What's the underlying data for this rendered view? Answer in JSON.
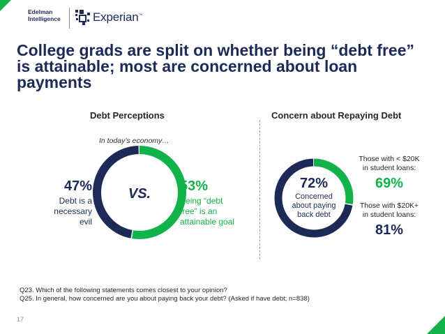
{
  "header": {
    "edelman_logo": [
      "Edelman",
      "Intelligence"
    ],
    "experian_logo": "Experian",
    "trademark": "™"
  },
  "title": "College grads are split on whether being “debt free” is attainable; most are concerned about loan payments",
  "left_panel": {
    "heading": "Debt Perceptions",
    "subheading": "In today’s economy…",
    "center_label": "VS.",
    "left_value": "47%",
    "left_desc": [
      "Debt is a",
      "necessary evil"
    ],
    "right_value": "53%",
    "right_desc": [
      "Being “debt",
      "free” is an",
      "attainable goal"
    ]
  },
  "right_panel": {
    "heading": "Concern about Repaying Debt",
    "center_value": "72%",
    "center_desc": [
      "Concerned",
      "about paying",
      "back debt"
    ],
    "group1_label": [
      "Those with < $20K",
      "in student loans:"
    ],
    "group1_value": "69%",
    "group2_label": [
      "Those with $20K+",
      "in student loans:"
    ],
    "group2_value": "81%"
  },
  "footnotes": [
    "Q23. Which of the following statements comes closest to your opinion?",
    "Q25. In general, how concerned are you about paying back your debt? (Asked if have debt; n=838)"
  ],
  "page_number": "17",
  "colors": {
    "navy": "#1d2a57",
    "green": "#12b24a"
  },
  "chart_data": [
    {
      "type": "pie",
      "title": "Debt Perceptions",
      "categories": [
        "Debt is a necessary evil",
        "Being “debt free” is an attainable goal"
      ],
      "values": [
        47,
        53
      ],
      "colors": [
        "#1d2a57",
        "#12b24a"
      ]
    },
    {
      "type": "pie",
      "title": "Concern about Repaying Debt",
      "categories": [
        "Concerned about paying back debt",
        ""
      ],
      "values": [
        72,
        28
      ],
      "colors": [
        "#1d2a57",
        "#12b24a"
      ]
    }
  ]
}
